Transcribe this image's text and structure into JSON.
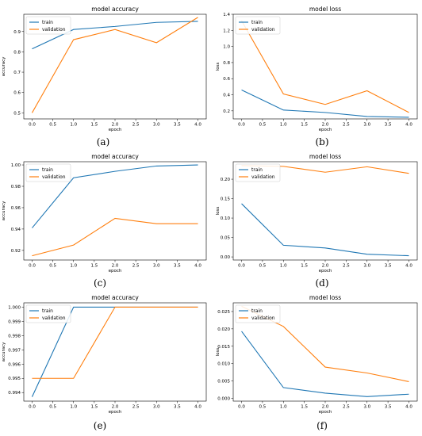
{
  "colors": {
    "train": "#1f77b4",
    "validation": "#ff7f0e"
  },
  "captions": [
    "(a)",
    "(b)",
    "(c)",
    "(d)",
    "(e)",
    "(f)"
  ],
  "chart_data": [
    {
      "type": "line",
      "title": "model accuracy",
      "xlabel": "epoch",
      "ylabel": "accuracy",
      "x": [
        0,
        1,
        2,
        3,
        4
      ],
      "xticks": [
        "0.0",
        "0.5",
        "1.0",
        "1.5",
        "2.0",
        "2.5",
        "3.0",
        "3.5",
        "4.0"
      ],
      "yticks": [
        "0.5",
        "0.6",
        "0.7",
        "0.8",
        "0.9"
      ],
      "ylim": [
        0.47,
        0.985
      ],
      "legend": "top-left",
      "series": [
        {
          "name": "train",
          "values": [
            0.815,
            0.91,
            0.925,
            0.945,
            0.95
          ]
        },
        {
          "name": "validation",
          "values": [
            0.5,
            0.86,
            0.91,
            0.845,
            0.97
          ]
        }
      ]
    },
    {
      "type": "line",
      "title": "model loss",
      "xlabel": "epoch",
      "ylabel": "loss",
      "x": [
        0,
        1,
        2,
        3,
        4
      ],
      "xticks": [
        "0.0",
        "0.5",
        "1.0",
        "1.5",
        "2.0",
        "2.5",
        "3.0",
        "3.5",
        "4.0"
      ],
      "yticks": [
        "0.2",
        "0.4",
        "0.6",
        "0.8",
        "1.0",
        "1.2",
        "1.4"
      ],
      "ylim": [
        0.1,
        1.4
      ],
      "legend": "top-left",
      "series": [
        {
          "name": "train",
          "values": [
            0.46,
            0.21,
            0.18,
            0.13,
            0.12
          ]
        },
        {
          "name": "validation",
          "values": [
            1.32,
            0.41,
            0.28,
            0.45,
            0.18
          ]
        }
      ]
    },
    {
      "type": "line",
      "title": "model accuracy",
      "xlabel": "epoch",
      "ylabel": "accuracy",
      "x": [
        0,
        1,
        2,
        3,
        4
      ],
      "xticks": [
        "0.0",
        "0.5",
        "1.0",
        "1.5",
        "2.0",
        "2.5",
        "3.0",
        "3.5",
        "4.0"
      ],
      "yticks": [
        "0.92",
        "0.94",
        "0.96",
        "0.98",
        "1.00"
      ],
      "ylim": [
        0.911,
        1.003
      ],
      "legend": "top-left",
      "series": [
        {
          "name": "train",
          "values": [
            0.941,
            0.988,
            0.994,
            0.999,
            1.0
          ]
        },
        {
          "name": "validation",
          "values": [
            0.915,
            0.925,
            0.95,
            0.945,
            0.945
          ]
        }
      ]
    },
    {
      "type": "line",
      "title": "model loss",
      "xlabel": "epoch",
      "ylabel": "loss",
      "x": [
        0,
        1,
        2,
        3,
        4
      ],
      "xticks": [
        "0.0",
        "0.5",
        "1.0",
        "1.5",
        "2.0",
        "2.5",
        "3.0",
        "3.5",
        "4.0"
      ],
      "yticks": [
        "0.00",
        "0.05",
        "0.10",
        "0.15",
        "0.20"
      ],
      "ylim": [
        -0.008,
        0.245
      ],
      "legend": "top-left",
      "series": [
        {
          "name": "train",
          "values": [
            0.137,
            0.03,
            0.023,
            0.007,
            0.003
          ]
        },
        {
          "name": "validation",
          "values": [
            0.235,
            0.233,
            0.218,
            0.232,
            0.215
          ]
        }
      ]
    },
    {
      "type": "line",
      "title": "model accuracy",
      "xlabel": "epoch",
      "ylabel": "accuracy",
      "x": [
        0,
        1,
        2,
        3,
        4
      ],
      "xticks": [
        "0.0",
        "0.5",
        "1.0",
        "1.5",
        "2.0",
        "2.5",
        "3.0",
        "3.5",
        "4.0"
      ],
      "yticks": [
        "0.994",
        "0.995",
        "0.996",
        "0.997",
        "0.998",
        "0.999",
        "1.000"
      ],
      "ylim": [
        0.9934,
        1.0003
      ],
      "legend": "top-left",
      "series": [
        {
          "name": "train",
          "values": [
            0.9937,
            1.0,
            1.0,
            1.0,
            1.0
          ]
        },
        {
          "name": "validation",
          "values": [
            0.995,
            0.995,
            1.0,
            1.0,
            1.0
          ]
        }
      ]
    },
    {
      "type": "line",
      "title": "model loss",
      "xlabel": "epoch",
      "ylabel": "loss",
      "x": [
        0,
        1,
        2,
        3,
        4
      ],
      "xticks": [
        "0.0",
        "0.5",
        "1.0",
        "1.5",
        "2.0",
        "2.5",
        "3.0",
        "3.5",
        "4.0"
      ],
      "yticks": [
        "0.000",
        "0.005",
        "0.010",
        "0.015",
        "0.020",
        "0.025"
      ],
      "ylim": [
        -0.0008,
        0.0275
      ],
      "legend": "top-left",
      "series": [
        {
          "name": "train",
          "values": [
            0.0193,
            0.0031,
            0.0015,
            0.0005,
            0.0012
          ]
        },
        {
          "name": "validation",
          "values": [
            0.0265,
            0.0207,
            0.009,
            0.0073,
            0.0048
          ]
        }
      ]
    }
  ]
}
